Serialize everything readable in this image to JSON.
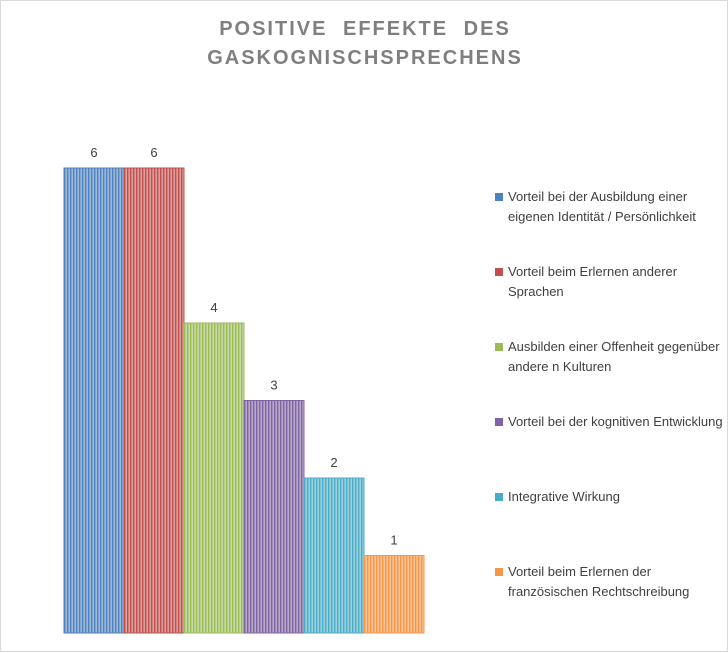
{
  "chart_data": {
    "type": "bar",
    "title": [
      "POSITIVE  EFFEKTE  DES",
      "GASKOGNISCHSPRECHENS"
    ],
    "xlabel": "",
    "ylabel": "",
    "ylim": [
      0,
      6
    ],
    "grid": false,
    "legend_position": "right",
    "series": [
      {
        "name": "Vorteil bei der Ausbildung einer eigenen Identität / Persönlichkeit",
        "values": [
          6
        ],
        "color": "#4f81bd"
      },
      {
        "name": "Vorteil beim Erlernen anderer Sprachen",
        "values": [
          6
        ],
        "color": "#c0504d"
      },
      {
        "name": "Ausbilden einer Offenheit gegenüber andere n Kulturen",
        "values": [
          4
        ],
        "color": "#9bbb59"
      },
      {
        "name": "Vorteil bei der kognitiven Entwicklung",
        "values": [
          3
        ],
        "color": "#8064a2"
      },
      {
        "name": "Integrative Wirkung",
        "values": [
          2
        ],
        "color": "#4bacc6"
      },
      {
        "name": "Vorteil beim Erlernen der französischen Rechtschreibung",
        "values": [
          1
        ],
        "color": "#f79646"
      }
    ]
  }
}
